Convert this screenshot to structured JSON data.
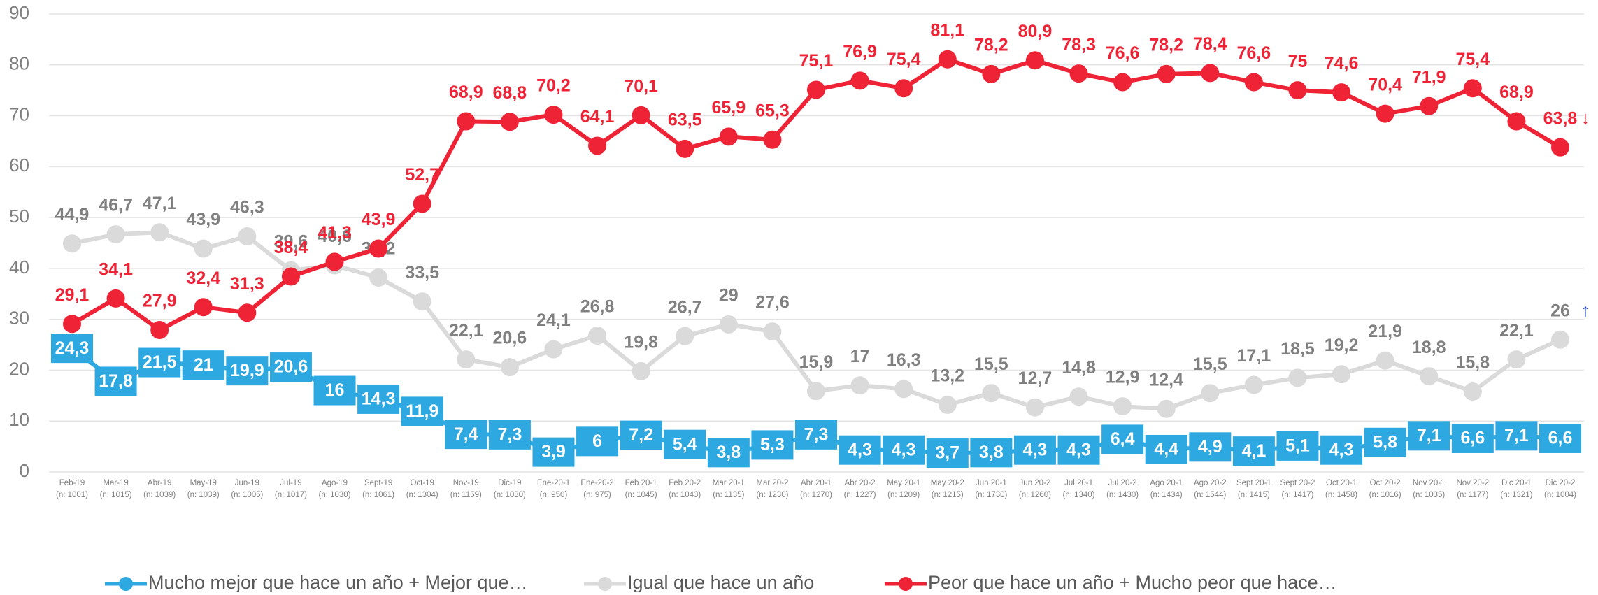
{
  "chart_data": {
    "type": "line",
    "categories": [
      "Feb-19",
      "Mar-19",
      "Abr-19",
      "May-19",
      "Jun-19",
      "Jul-19",
      "Ago-19",
      "Sept-19",
      "Oct-19",
      "Nov-19",
      "Dic-19",
      "Ene-20-1",
      "Ene-20-2",
      "Feb 20-1",
      "Feb 20-2",
      "Mar 20-1",
      "Mar 20-2",
      "Abr 20-1",
      "Abr 20-2",
      "May 20-1",
      "May 20-2",
      "Jun 20-1",
      "Jun 20-2",
      "Jul 20-1",
      "Jul 20-2",
      "Ago 20-1",
      "Ago 20-2",
      "Sept 20-1",
      "Sept 20-2",
      "Oct 20-1",
      "Oct 20-2",
      "Nov 20-1",
      "Nov 20-2",
      "Dic 20-1",
      "Dic 20-2"
    ],
    "category_notes": [
      "(n: 1001)",
      "(n: 1015)",
      "(n: 1039)",
      "(n: 1039)",
      "(n: 1005)",
      "(n: 1017)",
      "(n: 1030)",
      "(n: 1061)",
      "(n: 1304)",
      "(n: 1159)",
      "(n: 1030)",
      "(n: 950)",
      "(n: 975)",
      "(n: 1045)",
      "(n: 1043)",
      "(n: 1135)",
      "(n: 1230)",
      "(n: 1270)",
      "(n: 1227)",
      "(n: 1209)",
      "(n: 1215)",
      "(n: 1730)",
      "(n: 1260)",
      "(n: 1340)",
      "(n: 1430)",
      "(n: 1434)",
      "(n: 1544)",
      "(n: 1415)",
      "(n: 1417)",
      "(n: 1458)",
      "(n: 1016)",
      "(n: 1035)",
      "(n: 1177)",
      "(n: 1321)",
      "(n: 1004)"
    ],
    "series": [
      {
        "name": "Mucho mejor que hace un año + Mejor que…",
        "color": "#2ea8e0",
        "values": [
          24.3,
          17.8,
          21.5,
          21,
          19.9,
          20.6,
          16,
          14.3,
          11.9,
          7.4,
          7.3,
          3.9,
          6,
          7.2,
          5.4,
          3.8,
          5.3,
          7.3,
          4.3,
          4.3,
          3.7,
          3.8,
          4.3,
          4.3,
          6.4,
          4.4,
          4.9,
          4.1,
          5.1,
          4.3,
          5.8,
          7.1,
          6.6,
          7.1,
          6.6
        ],
        "value_labels": [
          "24,3",
          "17,8",
          "21,5",
          "21",
          "19,9",
          "20,6",
          "16",
          "14,3",
          "11,9",
          "7,4",
          "7,3",
          "3,9",
          "6",
          "7,2",
          "5,4",
          "3,8",
          "5,3",
          "7,3",
          "4,3",
          "4,3",
          "3,7",
          "3,8",
          "4,3",
          "4,3",
          "6,4",
          "4,4",
          "4,9",
          "4,1",
          "5,1",
          "4,3",
          "5,8",
          "7,1",
          "6,6",
          "7,1",
          "6,6"
        ]
      },
      {
        "name": "Igual que hace un año",
        "color": "#dadada",
        "label_color": "#808080",
        "values": [
          44.9,
          46.7,
          47.1,
          43.9,
          46.3,
          39.6,
          40.6,
          38.2,
          33.5,
          22.1,
          20.6,
          24.1,
          26.8,
          19.8,
          26.7,
          29,
          27.6,
          15.9,
          17,
          16.3,
          13.2,
          15.5,
          12.7,
          14.8,
          12.9,
          12.4,
          15.5,
          17.1,
          18.5,
          19.2,
          21.9,
          18.8,
          15.8,
          22.1,
          26
        ],
        "value_labels": [
          "44,9",
          "46,7",
          "47,1",
          "43,9",
          "46,3",
          "39,6",
          "40,6",
          "38,2",
          "33,5",
          "22,1",
          "20,6",
          "24,1",
          "26,8",
          "19,8",
          "26,7",
          "29",
          "27,6",
          "15,9",
          "17",
          "16,3",
          "13,2",
          "15,5",
          "12,7",
          "14,8",
          "12,9",
          "12,4",
          "15,5",
          "17,1",
          "18,5",
          "19,2",
          "21,9",
          "18,8",
          "15,8",
          "22,1",
          "26"
        ]
      },
      {
        "name": "Peor que hace un año + Mucho peor que hace…",
        "color": "#ee2336",
        "values": [
          29.1,
          34.1,
          27.9,
          32.4,
          31.3,
          38.4,
          41.3,
          43.9,
          52.7,
          68.9,
          68.8,
          70.2,
          64.1,
          70.1,
          63.5,
          65.9,
          65.3,
          75.1,
          76.9,
          75.4,
          81.1,
          78.2,
          80.9,
          78.3,
          76.6,
          78.2,
          78.4,
          76.6,
          75,
          74.6,
          70.4,
          71.9,
          75.4,
          68.9,
          63.8
        ],
        "value_labels": [
          "29,1",
          "34,1",
          "27,9",
          "32,4",
          "31,3",
          "38,4",
          "41,3",
          "43,9",
          "52,7",
          "68,9",
          "68,8",
          "70,2",
          "64,1",
          "70,1",
          "63,5",
          "65,9",
          "65,3",
          "75,1",
          "76,9",
          "75,4",
          "81,1",
          "78,2",
          "80,9",
          "78,3",
          "76,6",
          "78,2",
          "78,4",
          "76,6",
          "75",
          "74,6",
          "70,4",
          "71,9",
          "75,4",
          "68,9",
          "63,8"
        ]
      }
    ],
    "annotations": [
      {
        "text": "↑",
        "color": "#1d3fcc"
      },
      {
        "text": "↓",
        "color": "#ee2336"
      }
    ],
    "ylim": [
      0,
      90
    ],
    "yticks": [
      0,
      10,
      20,
      30,
      40,
      50,
      60,
      70,
      80,
      90
    ],
    "grid": true,
    "legend": "bottom"
  }
}
